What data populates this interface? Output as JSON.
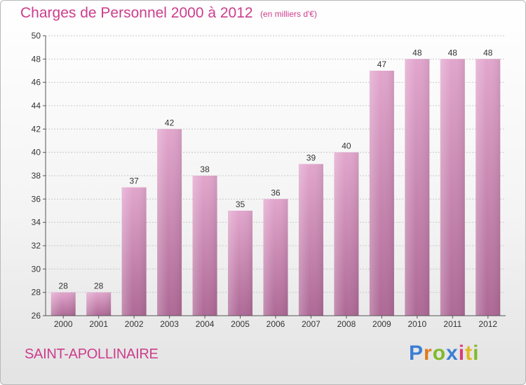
{
  "header": {
    "title": "Charges de Personnel 2000 à 2012",
    "subtitle": "(en milliers d'€)"
  },
  "footer": {
    "city": "SAINT-APOLLINAIRE",
    "logo": [
      "P",
      "r",
      "o",
      "x",
      "i",
      "t",
      "i"
    ],
    "logo_colors": [
      "#3a7fd4",
      "#e07a1f",
      "#7fba2a",
      "#3a7fd4",
      "#d93a7a",
      "#e0b81f",
      "#7fba2a"
    ]
  },
  "colors": {
    "bar_top": "#e2a6cd",
    "bar_bottom": "#ae6996",
    "grid": "#c8c8c8"
  },
  "chart_data": {
    "type": "bar",
    "categories": [
      "2000",
      "2001",
      "2002",
      "2003",
      "2004",
      "2005",
      "2006",
      "2007",
      "2008",
      "2009",
      "2010",
      "2011",
      "2012"
    ],
    "values": [
      28,
      28,
      37,
      42,
      38,
      35,
      36,
      39,
      40,
      47,
      48,
      48,
      48
    ],
    "ylim": [
      26,
      50
    ],
    "yticks": [
      26,
      28,
      30,
      32,
      34,
      36,
      38,
      40,
      42,
      44,
      46,
      48,
      50
    ],
    "grid": true
  }
}
